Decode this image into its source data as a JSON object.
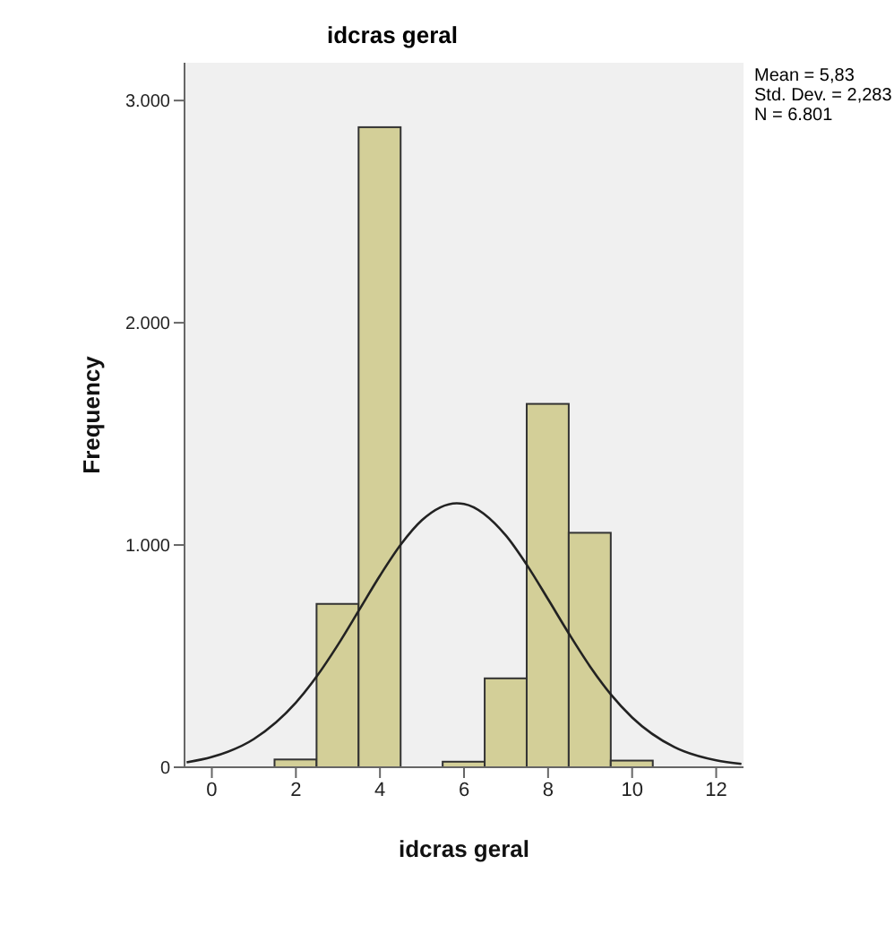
{
  "chart_data": {
    "type": "histogram",
    "title": "idcras geral",
    "xlabel": "idcras geral",
    "ylabel": "Frequency",
    "bins": [
      0.5,
      1.5,
      2.5,
      3.5,
      4.5,
      5.5,
      6.5,
      7.5,
      8.5,
      9.5,
      10.5
    ],
    "values": [
      0,
      35,
      735,
      2880,
      0,
      25,
      400,
      1635,
      1055,
      30
    ],
    "color": "#d3cf98",
    "series": [
      {
        "type": "line",
        "color": "#222222",
        "x": [
          -0.6,
          0,
          1,
          2,
          2.5,
          3,
          3.5,
          4,
          4.5,
          5,
          5.83,
          6,
          7,
          7.5,
          8,
          8.5,
          9,
          9.5,
          10,
          11,
          12,
          12.6
        ],
        "values": [
          22,
          46,
          127,
          291,
          410,
          551,
          706,
          862,
          1003,
          1112,
          1188,
          1185,
          1042,
          909,
          756,
          600,
          453,
          326,
          224,
          91,
          31,
          15
        ]
      }
    ],
    "xlim": [
      -0.65,
      12.65
    ],
    "xticks": [
      0,
      2,
      4,
      6,
      8,
      10,
      12
    ],
    "ylim": [
      0,
      3170
    ],
    "yticks": [
      {
        "value": 0,
        "label": "0"
      },
      {
        "value": 1000,
        "label": "1.000"
      },
      {
        "value": 2000,
        "label": "2.000"
      },
      {
        "value": 3000,
        "label": "3.000"
      }
    ],
    "marker": "none",
    "annotations": [
      "Mean = 5,83",
      "Std. Dev. = 2,283",
      "N = 6.801"
    ]
  }
}
